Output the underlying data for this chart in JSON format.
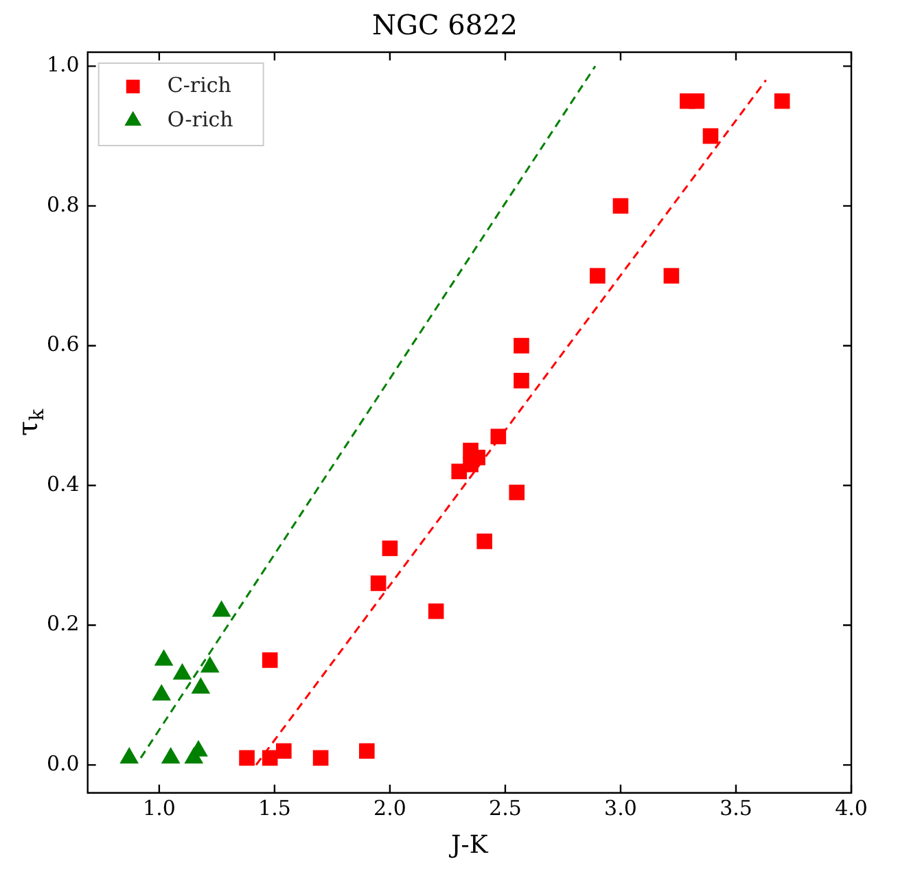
{
  "chart_data": {
    "type": "scatter",
    "title": "NGC 6822",
    "xlabel": "J-K",
    "ylabel": "τ$_{k}$",
    "xlim": [
      0.69,
      4.0
    ],
    "ylim": [
      -0.04,
      1.02
    ],
    "xticks": [
      {
        "value": 1.0,
        "label": "1.0"
      },
      {
        "value": 1.5,
        "label": "1.5"
      },
      {
        "value": 2.0,
        "label": "2.0"
      },
      {
        "value": 2.5,
        "label": "2.5"
      },
      {
        "value": 3.0,
        "label": "3.0"
      },
      {
        "value": 3.5,
        "label": "3.5"
      },
      {
        "value": 4.0,
        "label": "4.0"
      }
    ],
    "yticks": [
      {
        "value": 0,
        "label": "0.0"
      },
      {
        "value": 0.2,
        "label": "0.2"
      },
      {
        "value": 0.4,
        "label": "0.4"
      },
      {
        "value": 0.6,
        "label": "0.6"
      },
      {
        "value": 0.8,
        "label": "0.8"
      },
      {
        "value": 1.0,
        "label": "1.0"
      }
    ],
    "grid": false,
    "legend": "top left",
    "series": [
      {
        "name": "C-rich",
        "color": "#ff0000",
        "marker": "square",
        "x": [
          1.38,
          1.48,
          1.48,
          1.54,
          1.7,
          1.9,
          1.95,
          2.0,
          2.2,
          2.3,
          2.35,
          2.35,
          2.38,
          2.41,
          2.47,
          2.55,
          2.57,
          2.57,
          2.9,
          3.0,
          3.22,
          3.29,
          3.33,
          3.39,
          3.7
        ],
        "values": [
          0.01,
          0.01,
          0.15,
          0.02,
          0.01,
          0.02,
          0.26,
          0.31,
          0.22,
          0.42,
          0.43,
          0.45,
          0.44,
          0.32,
          0.47,
          0.39,
          0.55,
          0.6,
          0.7,
          0.8,
          0.7,
          0.95,
          0.95,
          0.9,
          0.95
        ]
      },
      {
        "name": "O-rich",
        "color": "#008000",
        "marker": "triangle",
        "x": [
          0.87,
          1.01,
          1.02,
          1.05,
          1.1,
          1.15,
          1.17,
          1.18,
          1.22,
          1.27
        ],
        "values": [
          0.01,
          0.1,
          0.15,
          0.01,
          0.13,
          0.01,
          0.02,
          0.11,
          0.14,
          0.22
        ]
      },
      {
        "type": "line",
        "color": "#008000",
        "line_style": "dashed",
        "marker": "none",
        "x": [
          0.92,
          2.89
        ],
        "values": [
          0.01,
          1.0
        ]
      },
      {
        "type": "line",
        "color": "#ff0000",
        "line_style": "dashed",
        "marker": "none",
        "x": [
          1.42,
          3.63
        ],
        "values": [
          0.0,
          0.98
        ]
      }
    ]
  }
}
